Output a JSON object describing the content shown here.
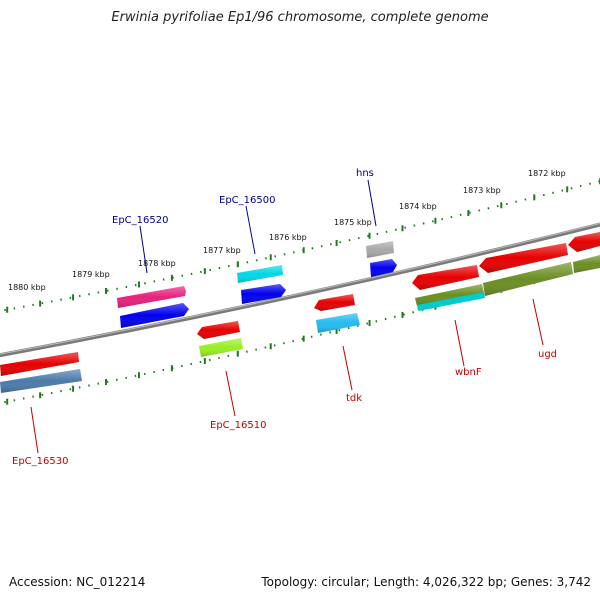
{
  "title": "Erwinia pyrifoliae Ep1/96 chromosome, complete genome",
  "footer": {
    "accession": "Accession: NC_012214",
    "stats": "Topology: circular; Length: 4,026,322 bp; Genes: 3,742"
  },
  "tick_labels": [
    "1880 kbp",
    "1879 kbp",
    "1878 kbp",
    "1877 kbp",
    "1876 kbp",
    "1875 kbp",
    "1874 kbp",
    "1873 kbp",
    "1872 kbp"
  ],
  "gene_labels": {
    "epc_16520": "EpC_16520",
    "epc_16500": "EpC_16500",
    "hns": "hns",
    "epc_16530": "EpC_16530",
    "epc_16510": "EpC_16510",
    "tdk": "tdk",
    "wbnf": "wbnF",
    "ugd": "ugd"
  },
  "colors": {
    "backbone": "#7a7a7a",
    "ticks": "#1f7a1f",
    "label_plus": "#00008b",
    "label_minus": "#c00000",
    "red": "#e60000",
    "magenta": "#e8217e",
    "blue": "#0000ee",
    "cyan": "#00d8e8",
    "grey": "#a8a8a8",
    "steel": "#4a7aaa",
    "lime": "#99ee22",
    "sky": "#22bbee",
    "olive": "#6b8e23",
    "teal": "#00cccc"
  }
}
